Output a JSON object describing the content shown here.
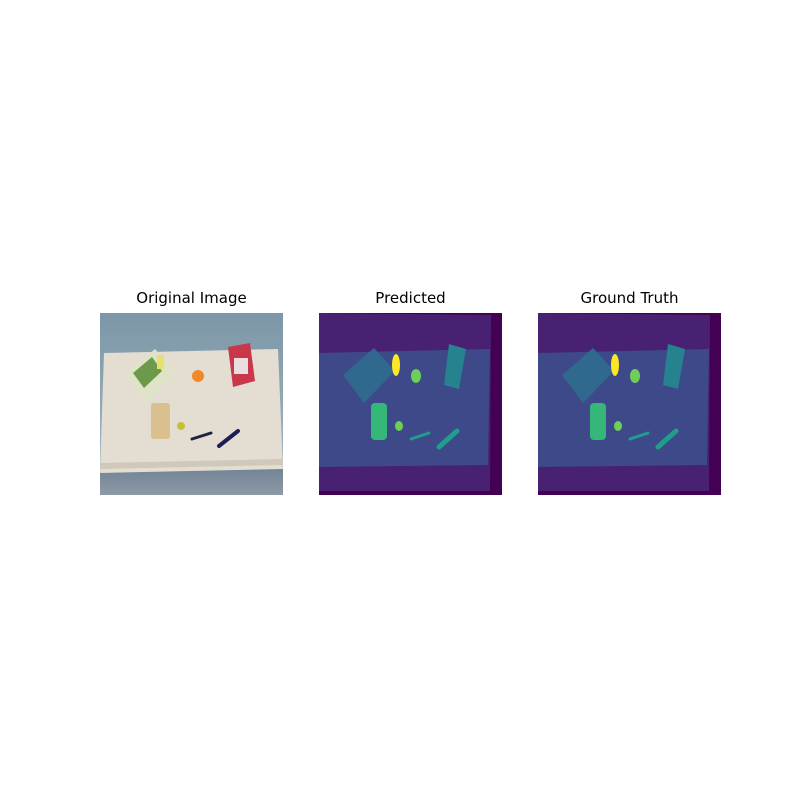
{
  "figure": {
    "panels": [
      {
        "id": "original",
        "title": "Original Image"
      },
      {
        "id": "predicted",
        "title": "Predicted"
      },
      {
        "id": "ground_truth",
        "title": "Ground Truth"
      }
    ]
  },
  "colors": {
    "background_class": "#440154",
    "table_border_class": "#482173",
    "table_class": "#3e4989",
    "box_class": "#31688e",
    "carton_class": "#26828e",
    "marker_class": "#1f9e89",
    "bread_class": "#35b779",
    "fruit_class": "#6ece58",
    "bottle_class": "#fde725"
  }
}
